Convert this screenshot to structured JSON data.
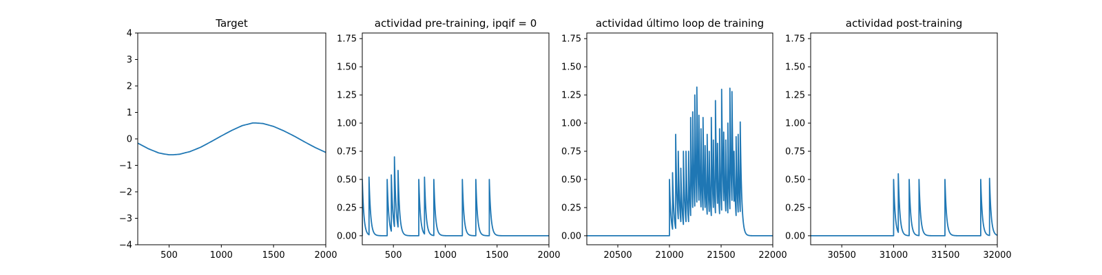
{
  "chart_data": [
    {
      "type": "line",
      "title": "Target",
      "xlim": [
        200,
        2000
      ],
      "ylim": [
        -4,
        4
      ],
      "xticks": [
        500,
        1000,
        1500,
        2000
      ],
      "yticks": [
        -4,
        -3,
        -2,
        -1,
        0,
        1,
        2,
        3,
        4
      ],
      "xtick_labels": [
        "500",
        "1000",
        "1500",
        "2000"
      ],
      "ytick_labels": [
        "−4",
        "−3",
        "−2",
        "−1",
        "0",
        "1",
        "2",
        "3",
        "4"
      ],
      "series": [
        {
          "x": [
            200,
            300,
            400,
            450,
            500,
            540,
            600,
            700,
            800,
            900,
            1000,
            1100,
            1200,
            1300,
            1330,
            1400,
            1500,
            1600,
            1700,
            1800,
            1900,
            2000
          ],
          "y": [
            -0.16,
            -0.37,
            -0.53,
            -0.57,
            -0.6,
            -0.6,
            -0.58,
            -0.48,
            -0.32,
            -0.11,
            0.11,
            0.32,
            0.5,
            0.6,
            0.6,
            0.58,
            0.47,
            0.3,
            0.1,
            -0.12,
            -0.33,
            -0.51
          ]
        }
      ]
    },
    {
      "type": "line",
      "title": "actividad pre-training, ipqif = 0",
      "xlim": [
        200,
        2000
      ],
      "ylim": [
        -0.08,
        1.8
      ],
      "xticks": [
        500,
        1000,
        1500,
        2000
      ],
      "yticks": [
        0,
        0.25,
        0.5,
        0.75,
        1.0,
        1.25,
        1.5,
        1.75
      ],
      "xtick_labels": [
        "500",
        "1000",
        "1500",
        "2000"
      ],
      "ytick_labels": [
        "0.00",
        "0.25",
        "0.50",
        "0.75",
        "1.00",
        "1.25",
        "1.50",
        "1.75"
      ],
      "spikes": [
        {
          "t": 200,
          "h": 0.5
        },
        {
          "t": 265,
          "h": 0.52
        },
        {
          "t": 440,
          "h": 0.5
        },
        {
          "t": 480,
          "h": 0.54
        },
        {
          "t": 510,
          "h": 0.7
        },
        {
          "t": 545,
          "h": 0.58
        },
        {
          "t": 745,
          "h": 0.5
        },
        {
          "t": 800,
          "h": 0.52
        },
        {
          "t": 890,
          "h": 0.5
        },
        {
          "t": 1165,
          "h": 0.5
        },
        {
          "t": 1295,
          "h": 0.5
        },
        {
          "t": 1425,
          "h": 0.5
        }
      ],
      "decay_tau": 16
    },
    {
      "type": "line",
      "title": "actividad último loop de training",
      "xlim": [
        20200,
        22000
      ],
      "ylim": [
        -0.08,
        1.8
      ],
      "xticks": [
        20500,
        21000,
        21500,
        22000
      ],
      "yticks": [
        0,
        0.25,
        0.5,
        0.75,
        1.0,
        1.25,
        1.5,
        1.75
      ],
      "xtick_labels": [
        "20500",
        "21000",
        "21500",
        "22000"
      ],
      "ytick_labels": [
        "0.00",
        "0.25",
        "0.50",
        "0.75",
        "1.00",
        "1.25",
        "1.50",
        "1.75"
      ],
      "spikes": [
        {
          "t": 21000,
          "h": 0.5
        },
        {
          "t": 21030,
          "h": 0.56
        },
        {
          "t": 21060,
          "h": 0.9
        },
        {
          "t": 21085,
          "h": 0.75
        },
        {
          "t": 21110,
          "h": 0.6
        },
        {
          "t": 21135,
          "h": 0.75
        },
        {
          "t": 21160,
          "h": 0.75
        },
        {
          "t": 21185,
          "h": 0.75
        },
        {
          "t": 21205,
          "h": 1.05
        },
        {
          "t": 21225,
          "h": 1.1
        },
        {
          "t": 21245,
          "h": 1.25
        },
        {
          "t": 21265,
          "h": 1.32
        },
        {
          "t": 21285,
          "h": 1.07
        },
        {
          "t": 21305,
          "h": 0.95
        },
        {
          "t": 21325,
          "h": 1.05
        },
        {
          "t": 21345,
          "h": 0.8
        },
        {
          "t": 21365,
          "h": 0.9
        },
        {
          "t": 21385,
          "h": 0.75
        },
        {
          "t": 21405,
          "h": 1.05
        },
        {
          "t": 21425,
          "h": 0.85
        },
        {
          "t": 21445,
          "h": 1.2
        },
        {
          "t": 21465,
          "h": 0.82
        },
        {
          "t": 21485,
          "h": 0.95
        },
        {
          "t": 21505,
          "h": 1.3
        },
        {
          "t": 21525,
          "h": 0.92
        },
        {
          "t": 21545,
          "h": 0.85
        },
        {
          "t": 21565,
          "h": 1.0
        },
        {
          "t": 21585,
          "h": 1.31
        },
        {
          "t": 21605,
          "h": 1.28
        },
        {
          "t": 21625,
          "h": 0.75
        },
        {
          "t": 21645,
          "h": 0.88
        },
        {
          "t": 21665,
          "h": 0.9
        },
        {
          "t": 21685,
          "h": 1.01
        }
      ],
      "decay_tau": 14
    },
    {
      "type": "line",
      "title": "actividad post-training",
      "xlim": [
        30200,
        32000
      ],
      "ylim": [
        -0.08,
        1.8
      ],
      "xticks": [
        30500,
        31000,
        31500,
        32000
      ],
      "yticks": [
        0,
        0.25,
        0.5,
        0.75,
        1.0,
        1.25,
        1.5,
        1.75
      ],
      "xtick_labels": [
        "30500",
        "31000",
        "31500",
        "32000"
      ],
      "ytick_labels": [
        "0.00",
        "0.25",
        "0.50",
        "0.75",
        "1.00",
        "1.25",
        "1.50",
        "1.75"
      ],
      "spikes": [
        {
          "t": 31000,
          "h": 0.5
        },
        {
          "t": 31045,
          "h": 0.55
        },
        {
          "t": 31150,
          "h": 0.5
        },
        {
          "t": 31245,
          "h": 0.5
        },
        {
          "t": 31495,
          "h": 0.5
        },
        {
          "t": 31840,
          "h": 0.5
        },
        {
          "t": 31925,
          "h": 0.51
        }
      ],
      "decay_tau": 16
    }
  ]
}
